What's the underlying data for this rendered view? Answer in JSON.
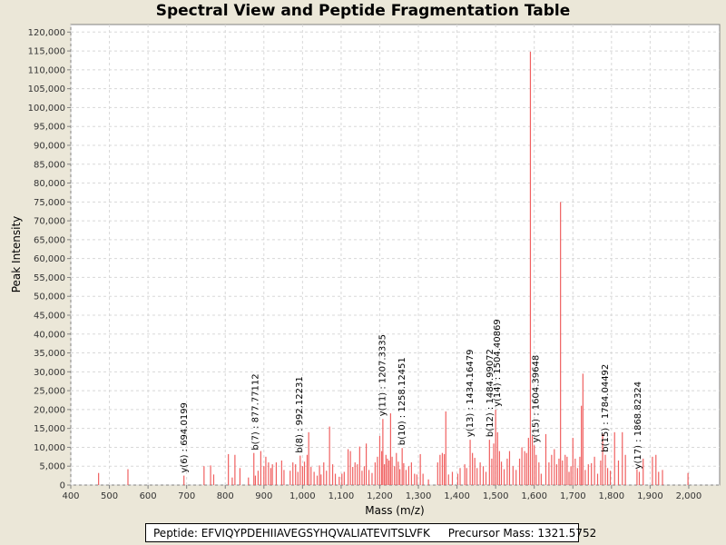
{
  "chart_data": {
    "type": "bar",
    "title": "Spectral View and Peptide Fragmentation Table",
    "xlabel": "Mass (m/z)",
    "ylabel": "Peak Intensity",
    "xlim": [
      400,
      2080
    ],
    "ylim": [
      0,
      122000
    ],
    "x_ticks": [
      400,
      500,
      600,
      700,
      800,
      900,
      1000,
      1100,
      1200,
      1300,
      1400,
      1500,
      1600,
      1700,
      1800,
      1900,
      2000
    ],
    "x_tick_labels": [
      "400",
      "500",
      "600",
      "700",
      "800",
      "900",
      "1,000",
      "1,100",
      "1,200",
      "1,300",
      "1,400",
      "1,500",
      "1,600",
      "1,700",
      "1,800",
      "1,900",
      "2,000"
    ],
    "y_ticks": [
      0,
      5000,
      10000,
      15000,
      20000,
      25000,
      30000,
      35000,
      40000,
      45000,
      50000,
      55000,
      60000,
      65000,
      70000,
      75000,
      80000,
      85000,
      90000,
      95000,
      100000,
      105000,
      110000,
      115000,
      120000
    ],
    "y_tick_labels": [
      "0",
      "5,000",
      "10,000",
      "15,000",
      "20,000",
      "25,000",
      "30,000",
      "35,000",
      "40,000",
      "45,000",
      "50,000",
      "55,000",
      "60,000",
      "65,000",
      "70,000",
      "75,000",
      "80,000",
      "85,000",
      "90,000",
      "95,000",
      "100,000",
      "105,000",
      "110,000",
      "115,000",
      "120,000"
    ],
    "grid": true,
    "bar_color": "#f06060",
    "peaks": [
      [
        472,
        3200
      ],
      [
        548,
        4200
      ],
      [
        693,
        2500
      ],
      [
        745,
        5000
      ],
      [
        762,
        5200
      ],
      [
        770,
        2800
      ],
      [
        808,
        8200
      ],
      [
        818,
        2000
      ],
      [
        825,
        8000
      ],
      [
        838,
        4500
      ],
      [
        860,
        2000
      ],
      [
        874,
        8500
      ],
      [
        878,
        2500
      ],
      [
        885,
        3800
      ],
      [
        892,
        9000
      ],
      [
        900,
        5000
      ],
      [
        905,
        7500
      ],
      [
        912,
        6000
      ],
      [
        918,
        4500
      ],
      [
        922,
        5500
      ],
      [
        932,
        6000
      ],
      [
        946,
        6500
      ],
      [
        952,
        4000
      ],
      [
        968,
        3800
      ],
      [
        975,
        6000
      ],
      [
        982,
        5500
      ],
      [
        988,
        3500
      ],
      [
        994,
        7800
      ],
      [
        1000,
        5000
      ],
      [
        1005,
        6200
      ],
      [
        1012,
        8000
      ],
      [
        1016,
        14000
      ],
      [
        1022,
        4800
      ],
      [
        1030,
        3500
      ],
      [
        1038,
        2500
      ],
      [
        1044,
        5200
      ],
      [
        1048,
        2800
      ],
      [
        1055,
        6000
      ],
      [
        1062,
        3800
      ],
      [
        1070,
        15500
      ],
      [
        1078,
        5500
      ],
      [
        1085,
        3000
      ],
      [
        1095,
        2200
      ],
      [
        1102,
        3000
      ],
      [
        1108,
        3500
      ],
      [
        1118,
        9500
      ],
      [
        1124,
        9000
      ],
      [
        1130,
        4800
      ],
      [
        1136,
        6000
      ],
      [
        1142,
        5500
      ],
      [
        1148,
        10200
      ],
      [
        1154,
        3800
      ],
      [
        1160,
        5000
      ],
      [
        1165,
        11000
      ],
      [
        1172,
        4000
      ],
      [
        1180,
        3200
      ],
      [
        1188,
        6000
      ],
      [
        1194,
        7500
      ],
      [
        1200,
        13000
      ],
      [
        1205,
        9000
      ],
      [
        1208,
        17500
      ],
      [
        1212,
        5500
      ],
      [
        1216,
        8000
      ],
      [
        1220,
        7000
      ],
      [
        1224,
        6500
      ],
      [
        1228,
        19000
      ],
      [
        1232,
        7500
      ],
      [
        1238,
        5000
      ],
      [
        1243,
        8500
      ],
      [
        1248,
        6200
      ],
      [
        1252,
        4200
      ],
      [
        1258,
        9800
      ],
      [
        1262,
        5800
      ],
      [
        1268,
        4000
      ],
      [
        1275,
        5000
      ],
      [
        1282,
        6000
      ],
      [
        1290,
        3000
      ],
      [
        1296,
        2800
      ],
      [
        1305,
        8200
      ],
      [
        1312,
        3000
      ],
      [
        1326,
        1500
      ],
      [
        1350,
        6000
      ],
      [
        1356,
        8000
      ],
      [
        1362,
        8500
      ],
      [
        1367,
        8200
      ],
      [
        1371,
        19500
      ],
      [
        1378,
        2800
      ],
      [
        1388,
        3500
      ],
      [
        1402,
        3000
      ],
      [
        1408,
        4500
      ],
      [
        1420,
        5500
      ],
      [
        1425,
        4500
      ],
      [
        1434,
        12000
      ],
      [
        1440,
        8500
      ],
      [
        1446,
        7200
      ],
      [
        1452,
        4500
      ],
      [
        1460,
        6000
      ],
      [
        1468,
        5000
      ],
      [
        1475,
        3500
      ],
      [
        1484,
        12000
      ],
      [
        1490,
        7000
      ],
      [
        1495,
        11000
      ],
      [
        1500,
        20000
      ],
      [
        1505,
        14000
      ],
      [
        1510,
        9000
      ],
      [
        1515,
        6200
      ],
      [
        1522,
        4200
      ],
      [
        1530,
        7000
      ],
      [
        1536,
        9000
      ],
      [
        1545,
        5000
      ],
      [
        1553,
        4000
      ],
      [
        1562,
        7000
      ],
      [
        1568,
        10000
      ],
      [
        1575,
        9000
      ],
      [
        1580,
        8500
      ],
      [
        1585,
        12500
      ],
      [
        1590,
        114800
      ],
      [
        1595,
        13000
      ],
      [
        1600,
        10500
      ],
      [
        1605,
        8000
      ],
      [
        1612,
        6000
      ],
      [
        1618,
        3000
      ],
      [
        1630,
        13500
      ],
      [
        1638,
        6000
      ],
      [
        1645,
        8000
      ],
      [
        1652,
        9500
      ],
      [
        1658,
        5500
      ],
      [
        1664,
        7000
      ],
      [
        1668,
        75000
      ],
      [
        1673,
        6500
      ],
      [
        1680,
        8000
      ],
      [
        1685,
        7500
      ],
      [
        1690,
        3500
      ],
      [
        1695,
        5000
      ],
      [
        1700,
        12500
      ],
      [
        1706,
        7000
      ],
      [
        1712,
        4500
      ],
      [
        1718,
        7500
      ],
      [
        1722,
        21000
      ],
      [
        1726,
        29500
      ],
      [
        1732,
        4000
      ],
      [
        1740,
        5500
      ],
      [
        1748,
        5800
      ],
      [
        1756,
        7500
      ],
      [
        1764,
        3000
      ],
      [
        1772,
        6500
      ],
      [
        1777,
        13500
      ],
      [
        1784,
        8000
      ],
      [
        1790,
        4500
      ],
      [
        1797,
        3800
      ],
      [
        1808,
        14000
      ],
      [
        1818,
        6500
      ],
      [
        1828,
        14000
      ],
      [
        1836,
        8000
      ],
      [
        1866,
        4200
      ],
      [
        1872,
        3500
      ],
      [
        1882,
        7000
      ],
      [
        1906,
        7500
      ],
      [
        1915,
        8000
      ],
      [
        1922,
        3500
      ],
      [
        1932,
        4000
      ],
      [
        1998,
        3200
      ]
    ],
    "annotations": [
      {
        "x": 694.0199,
        "y": 2500,
        "label": "y(6) : 694.0199"
      },
      {
        "x": 877.77112,
        "y": 8500,
        "label": "b(7) : 877.77112"
      },
      {
        "x": 992.12231,
        "y": 7800,
        "label": "b(8) : 992.12231"
      },
      {
        "x": 1207.3335,
        "y": 17500,
        "label": "y(11) : 1207.3335"
      },
      {
        "x": 1258.12451,
        "y": 9800,
        "label": "b(10) : 1258.12451"
      },
      {
        "x": 1434.16479,
        "y": 12000,
        "label": "y(13) : 1434.16479"
      },
      {
        "x": 1484.99072,
        "y": 12000,
        "label": "b(12) : 1484.99072"
      },
      {
        "x": 1504.40869,
        "y": 20000,
        "label": "y(14) : 1504.40869"
      },
      {
        "x": 1604.39648,
        "y": 10500,
        "label": "y(15) : 1604.39648"
      },
      {
        "x": 1784.04492,
        "y": 8000,
        "label": "b(15) : 1784.04492"
      },
      {
        "x": 1868.82324,
        "y": 3500,
        "label": "y(17) : 1868.82324"
      }
    ]
  },
  "footer": {
    "peptide": "Peptide: EFVIQYPDEHIIAVEGSYHQVALIATEVITSLVFK",
    "precursor": "Precursor Mass: 1321.5752"
  }
}
